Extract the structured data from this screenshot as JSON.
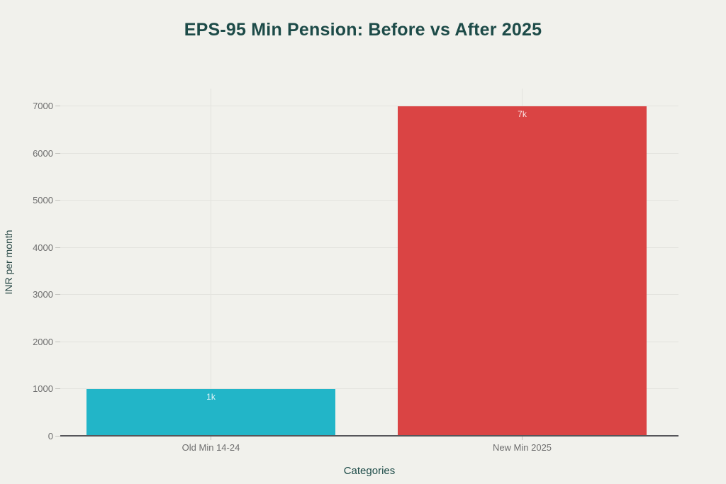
{
  "page": {
    "background_color": "#F1F1EC"
  },
  "chart_data": {
    "type": "bar",
    "title": "EPS-95 Min Pension: Before vs After 2025",
    "xlabel": "Categories",
    "ylabel": "INR per month",
    "categories": [
      "Old Min 14-24",
      "New Min 2025"
    ],
    "values": [
      1000,
      7000
    ],
    "value_labels": [
      "1k",
      "7k"
    ],
    "bar_colors": [
      "#22B5C8",
      "#DA4444"
    ],
    "ylim": [
      0,
      7000
    ],
    "yticks": [
      0,
      1000,
      2000,
      3000,
      4000,
      5000,
      6000,
      7000
    ],
    "grid": true,
    "legend": false,
    "colors": {
      "title": "#1D4B48",
      "tick_label": "#6E6E6E",
      "gridline": "#E3E3DE",
      "axis_line": "#56565A",
      "bar_value_label": "#F4F1EB"
    }
  }
}
